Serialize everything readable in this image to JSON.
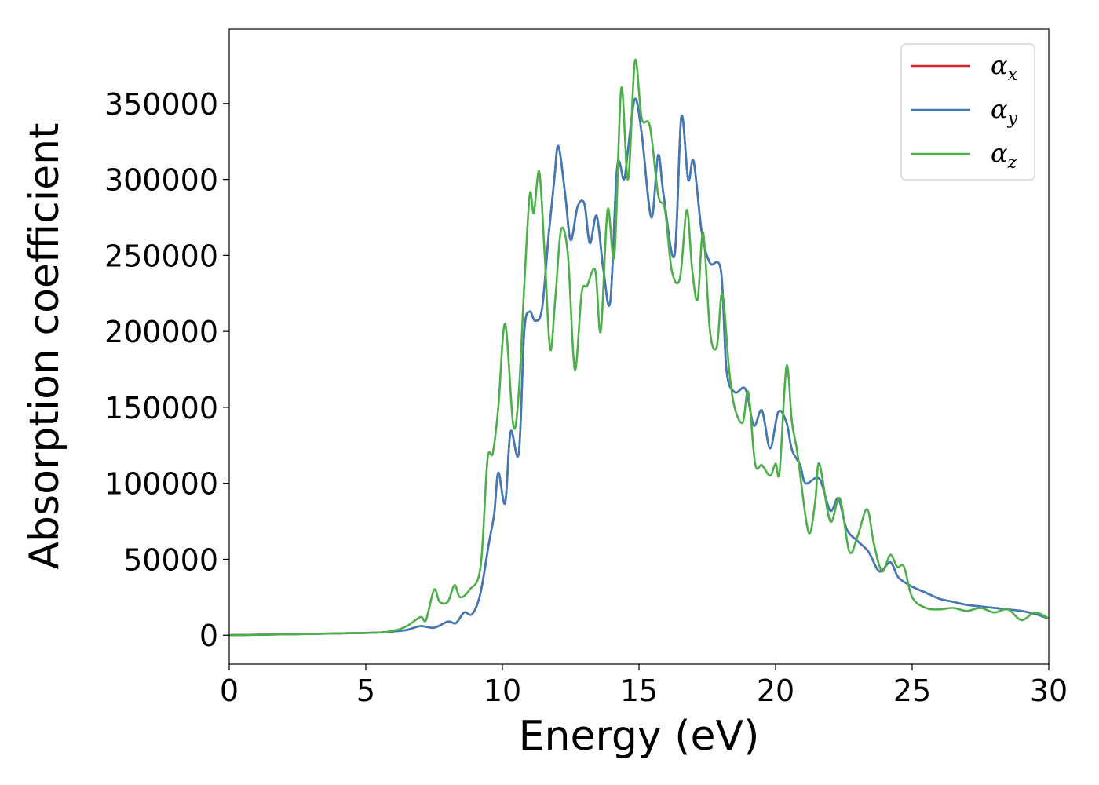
{
  "chart_data": {
    "type": "line",
    "xlabel": "Energy (eV)",
    "ylabel": "Absorption coefficient",
    "xlim": [
      0,
      30
    ],
    "ylim": [
      -19000,
      399000
    ],
    "xticks": [
      0,
      5,
      10,
      15,
      20,
      25,
      30
    ],
    "yticks": [
      0,
      50000,
      100000,
      150000,
      200000,
      250000,
      300000,
      350000
    ],
    "grid": false,
    "legend_position": "top-right",
    "series": [
      {
        "name": "α",
        "sub": "x",
        "color": "#d62728",
        "x": [
          0,
          5,
          6,
          6.5,
          7,
          7.5,
          8,
          8.3,
          8.6,
          8.9,
          9.2,
          9.5,
          9.7,
          9.85,
          10.1,
          10.3,
          10.6,
          10.8,
          11,
          11.2,
          11.45,
          11.7,
          11.9,
          12.05,
          12.3,
          12.5,
          12.75,
          13,
          13.2,
          13.45,
          13.7,
          13.95,
          14.2,
          14.45,
          14.6,
          14.85,
          15.1,
          15.45,
          15.7,
          15.9,
          16.3,
          16.55,
          16.8,
          17,
          17.3,
          17.6,
          18,
          18.2,
          18.5,
          18.9,
          19.2,
          19.5,
          19.8,
          20.1,
          20.4,
          20.6,
          20.9,
          21.1,
          21.6,
          22,
          22.3,
          22.6,
          23,
          23.4,
          23.8,
          24.2,
          24.5,
          25,
          25.5,
          26,
          26.5,
          27,
          27.5,
          28,
          28.5,
          29,
          29.5,
          30
        ],
        "y": [
          0,
          1500,
          2500,
          3500,
          6000,
          5000,
          9000,
          8000,
          15000,
          14000,
          28000,
          60000,
          80000,
          107000,
          87000,
          134000,
          120000,
          200000,
          213000,
          207000,
          215000,
          265000,
          300000,
          322000,
          290000,
          260000,
          282000,
          284000,
          258000,
          276000,
          240000,
          220000,
          308000,
          300000,
          320000,
          353000,
          330000,
          275000,
          316000,
          290000,
          250000,
          341000,
          300000,
          312000,
          265000,
          245000,
          240000,
          175000,
          160000,
          162000,
          138000,
          148000,
          123000,
          147000,
          140000,
          122000,
          112000,
          100000,
          103000,
          82000,
          90000,
          70000,
          62000,
          55000,
          42000,
          48000,
          38000,
          32000,
          28000,
          24000,
          22000,
          20000,
          19000,
          18000,
          17000,
          16000,
          14000,
          11000
        ]
      },
      {
        "name": "α",
        "sub": "y",
        "color": "#3d7ab8",
        "x": [
          0,
          5,
          6,
          6.5,
          7,
          7.5,
          8,
          8.3,
          8.6,
          8.9,
          9.2,
          9.5,
          9.7,
          9.85,
          10.1,
          10.3,
          10.6,
          10.8,
          11,
          11.2,
          11.45,
          11.7,
          11.9,
          12.05,
          12.3,
          12.5,
          12.75,
          13,
          13.2,
          13.45,
          13.7,
          13.95,
          14.2,
          14.45,
          14.6,
          14.85,
          15.1,
          15.45,
          15.7,
          15.9,
          16.3,
          16.55,
          16.8,
          17,
          17.3,
          17.6,
          18,
          18.2,
          18.5,
          18.9,
          19.2,
          19.5,
          19.8,
          20.1,
          20.4,
          20.6,
          20.9,
          21.1,
          21.6,
          22,
          22.3,
          22.6,
          23,
          23.4,
          23.8,
          24.2,
          24.5,
          25,
          25.5,
          26,
          26.5,
          27,
          27.5,
          28,
          28.5,
          29,
          29.5,
          30
        ],
        "y": [
          0,
          1500,
          2500,
          3500,
          6000,
          5000,
          9000,
          8000,
          15000,
          14000,
          28000,
          60000,
          80000,
          107000,
          87000,
          134000,
          120000,
          200000,
          213000,
          207000,
          215000,
          265000,
          300000,
          322000,
          290000,
          260000,
          282000,
          284000,
          258000,
          276000,
          240000,
          220000,
          308000,
          300000,
          320000,
          353000,
          330000,
          275000,
          316000,
          290000,
          250000,
          341000,
          300000,
          312000,
          265000,
          245000,
          240000,
          175000,
          160000,
          162000,
          138000,
          148000,
          123000,
          147000,
          140000,
          122000,
          112000,
          100000,
          103000,
          82000,
          90000,
          70000,
          62000,
          55000,
          42000,
          48000,
          38000,
          32000,
          28000,
          24000,
          22000,
          20000,
          19000,
          18000,
          17000,
          16000,
          14000,
          11000
        ]
      },
      {
        "name": "α",
        "sub": "z",
        "color": "#4daf4a",
        "x": [
          0,
          5,
          6,
          6.5,
          7,
          7.2,
          7.5,
          7.7,
          8,
          8.25,
          8.45,
          8.8,
          9.2,
          9.45,
          9.65,
          9.85,
          10.1,
          10.4,
          10.6,
          10.8,
          11,
          11.15,
          11.35,
          11.55,
          11.75,
          11.95,
          12.15,
          12.4,
          12.65,
          12.9,
          13.1,
          13.4,
          13.6,
          13.85,
          14.1,
          14.35,
          14.6,
          14.85,
          15.1,
          15.4,
          15.7,
          15.95,
          16.2,
          16.5,
          16.75,
          16.95,
          17.15,
          17.35,
          17.6,
          17.85,
          18.05,
          18.3,
          18.5,
          18.8,
          19,
          19.25,
          19.5,
          19.8,
          20,
          20.15,
          20.4,
          20.6,
          20.8,
          21.2,
          21.45,
          21.6,
          22,
          22.35,
          22.7,
          23,
          23.35,
          23.6,
          23.9,
          24.2,
          24.45,
          24.7,
          25,
          25.5,
          26,
          26.5,
          27,
          27.5,
          28,
          28.5,
          29,
          29.5,
          30
        ],
        "y": [
          0,
          1500,
          3000,
          6000,
          12000,
          10000,
          30000,
          22000,
          22000,
          33000,
          25000,
          30000,
          45000,
          115000,
          120000,
          150000,
          205000,
          138000,
          160000,
          230000,
          290000,
          278000,
          305000,
          250000,
          188000,
          225000,
          267000,
          250000,
          175000,
          225000,
          230000,
          240000,
          200000,
          280000,
          250000,
          360000,
          300000,
          378000,
          340000,
          335000,
          290000,
          280000,
          240000,
          235000,
          280000,
          240000,
          221000,
          265000,
          200000,
          190000,
          225000,
          175000,
          150000,
          140000,
          160000,
          113000,
          112000,
          105000,
          113000,
          108000,
          177000,
          140000,
          120000,
          68000,
          88000,
          113000,
          75000,
          90000,
          55000,
          65000,
          83000,
          60000,
          42000,
          53000,
          45000,
          45000,
          25000,
          18000,
          17000,
          18000,
          16000,
          18000,
          15000,
          17000,
          10000,
          15000,
          11000
        ]
      }
    ]
  }
}
